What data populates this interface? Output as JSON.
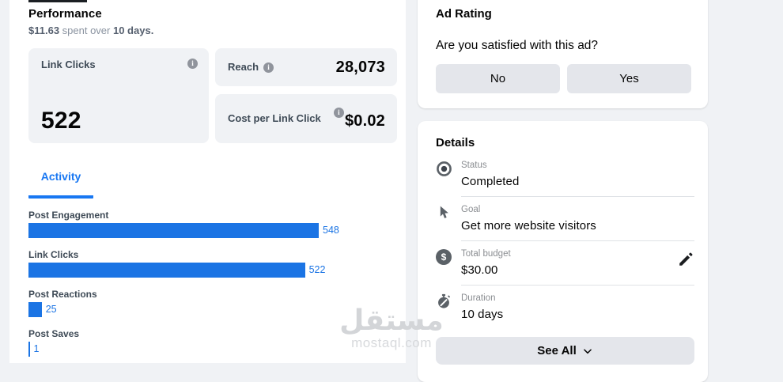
{
  "performance": {
    "title": "Performance",
    "subtitle": {
      "spend": "$11.63",
      "middle": " spent over ",
      "days": "10 days",
      "end": "."
    },
    "metrics": {
      "link_clicks": {
        "label": "Link Clicks",
        "value": "522"
      },
      "reach": {
        "label": "Reach",
        "value": "28,073"
      },
      "cost_per_link_click": {
        "label": "Cost per Link Click",
        "value": "$0.02"
      }
    },
    "tab_label": "Activity"
  },
  "chart_data": {
    "type": "bar",
    "orientation": "horizontal",
    "categories": [
      "Post Engagement",
      "Link Clicks",
      "Post Reactions",
      "Post Saves"
    ],
    "values": [
      548,
      522,
      25,
      1
    ],
    "xlim": [
      0,
      548
    ],
    "bar_color": "#1b74e4",
    "title": "Activity",
    "legend": "none",
    "grid": false
  },
  "ad_rating": {
    "title": "Ad Rating",
    "question": "Are you satisfied with this ad?",
    "no_label": "No",
    "yes_label": "Yes"
  },
  "details": {
    "title": "Details",
    "items": [
      {
        "icon": "status-icon",
        "label": "Status",
        "value": "Completed"
      },
      {
        "icon": "goal-cursor-icon",
        "label": "Goal",
        "value": "Get more website visitors"
      },
      {
        "icon": "dollar-icon",
        "label": "Total budget",
        "value": "$30.00",
        "editable": true
      },
      {
        "icon": "stopwatch-icon",
        "label": "Duration",
        "value": "10 days"
      }
    ],
    "see_all_label": "See All"
  },
  "watermark": {
    "logo_text": "مستقل",
    "domain": "mostaql.com"
  },
  "colors": {
    "page_bg": "#f0f2f5",
    "panel_bg": "#ffffff",
    "metric_card_bg": "#f0f2f5",
    "button_bg": "#e4e6eb",
    "bar_blue": "#1b74e4",
    "tab_blue": "#1877f2",
    "text_dark": "#050505",
    "text_muted": "#8a8d91"
  }
}
